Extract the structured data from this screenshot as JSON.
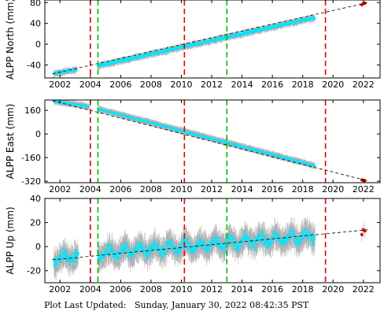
{
  "footer": {
    "label": "Plot Last Updated:",
    "timestamp": "Sunday, January 30, 2022 08:42:35 PST"
  },
  "colors": {
    "data": "#00e5ff",
    "error_bar": "#b0b0b0",
    "recent": "#e00000",
    "trend": "#000000",
    "red_line": "#dd0000",
    "green_line": "#00bb00"
  },
  "chart_data": [
    {
      "type": "scatter",
      "ylabel": "ALPP North (mm)",
      "xlim": [
        2001.0,
        2023.1
      ],
      "ylim": [
        -65,
        85
      ],
      "yticks": [
        -40,
        0,
        40,
        80
      ],
      "xticks": [
        2002,
        2004,
        2006,
        2008,
        2010,
        2012,
        2014,
        2016,
        2018,
        2020,
        2022
      ],
      "red_lines": [
        2004.0,
        2010.2,
        2019.5
      ],
      "green_lines": [
        2004.5,
        2013.0
      ],
      "trend": {
        "x": [
          2001.5,
          2022.3
        ],
        "y": [
          -57,
          80
        ]
      },
      "data_segments": [
        {
          "x_start": 2001.6,
          "x_end": 2003.1,
          "y_start": -57,
          "y_end": -49,
          "scatter": 3
        },
        {
          "x_start": 2004.5,
          "x_end": 2018.8,
          "y_start": -42,
          "y_end": 51,
          "scatter": 4
        }
      ],
      "recent": [
        {
          "x": 2021.9,
          "y": 76
        },
        {
          "x": 2022.0,
          "y": 78
        },
        {
          "x": 2022.1,
          "y": 79
        }
      ]
    },
    {
      "type": "scatter",
      "ylabel": "ALPP East (mm)",
      "xlim": [
        2001.0,
        2023.1
      ],
      "ylim": [
        -330,
        230
      ],
      "yticks": [
        -320,
        -160,
        0,
        160
      ],
      "xticks": [
        2002,
        2004,
        2006,
        2008,
        2010,
        2012,
        2014,
        2016,
        2018,
        2020,
        2022
      ],
      "red_lines": [
        2004.0,
        2010.2,
        2019.5
      ],
      "green_lines": [
        2004.5,
        2013.0
      ],
      "trend": {
        "x": [
          2001.5,
          2022.3
        ],
        "y": [
          225,
          -318
        ]
      },
      "data_segments": [
        {
          "x_start": 2001.6,
          "x_end": 2003.9,
          "y_start": 222,
          "y_end": 185,
          "scatter": 3
        },
        {
          "x_start": 2004.5,
          "x_end": 2018.8,
          "y_start": 170,
          "y_end": -215,
          "scatter": 3
        }
      ],
      "recent": [
        {
          "x": 2021.9,
          "y": -311
        },
        {
          "x": 2022.0,
          "y": -314
        },
        {
          "x": 2022.1,
          "y": -316
        }
      ]
    },
    {
      "type": "scatter",
      "ylabel": "ALPP Up (mm)",
      "xlim": [
        2001.0,
        2023.1
      ],
      "ylim": [
        -30,
        40
      ],
      "yticks": [
        -20,
        0,
        20,
        40
      ],
      "xticks": [
        2002,
        2004,
        2006,
        2008,
        2010,
        2012,
        2014,
        2016,
        2018,
        2020,
        2022
      ],
      "red_lines": [
        2004.0,
        2010.2,
        2019.5
      ],
      "green_lines": [
        2004.5,
        2013.0
      ],
      "trend": {
        "x": [
          2001.5,
          2022.3
        ],
        "y": [
          -11,
          14
        ]
      },
      "data_segments": [
        {
          "x_start": 2001.6,
          "x_end": 2003.2,
          "y_start": -10,
          "y_end": -8,
          "scatter": 9,
          "seasonal": 3
        },
        {
          "x_start": 2004.5,
          "x_end": 2018.8,
          "y_start": -6,
          "y_end": 9,
          "scatter": 8,
          "seasonal": 3.5
        }
      ],
      "recent": [
        {
          "x": 2021.9,
          "y": 10
        },
        {
          "x": 2022.0,
          "y": 14
        },
        {
          "x": 2022.1,
          "y": 13
        }
      ]
    }
  ]
}
